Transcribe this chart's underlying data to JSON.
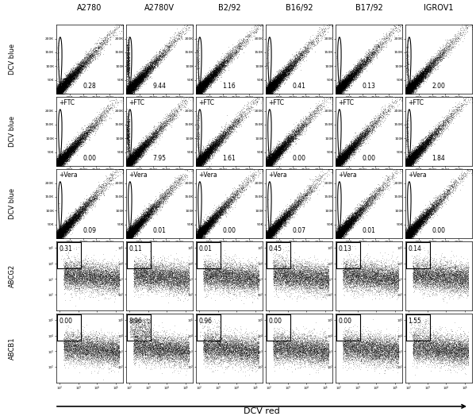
{
  "col_labels": [
    "A2780",
    "A2780V",
    "B2/92",
    "B16/92",
    "B17/92",
    "IGROV1"
  ],
  "row_labels": [
    "DCV blue",
    "DCV blue",
    "DCV blue",
    "ABCG2",
    "ABCB1"
  ],
  "row_annotations": [
    "",
    "+FTC",
    "+Vera",
    "",
    ""
  ],
  "percentages": [
    [
      "0.28",
      "9.44",
      "1.16",
      "0.41",
      "0.13",
      "2.00"
    ],
    [
      "0.00",
      "7.95",
      "1.61",
      "0.00",
      "0.00",
      "1.84"
    ],
    [
      "0.09",
      "0.01",
      "0.00",
      "0.07",
      "0.01",
      "0.00"
    ],
    [
      "0.31",
      "0.11",
      "0.01",
      "0.45",
      "0.13",
      "0.14"
    ],
    [
      "0.00",
      "8.96",
      "0.96",
      "0.00",
      "0.00",
      "1.55"
    ]
  ],
  "n_rows": 5,
  "n_cols": 6,
  "bg_color": "#ffffff"
}
